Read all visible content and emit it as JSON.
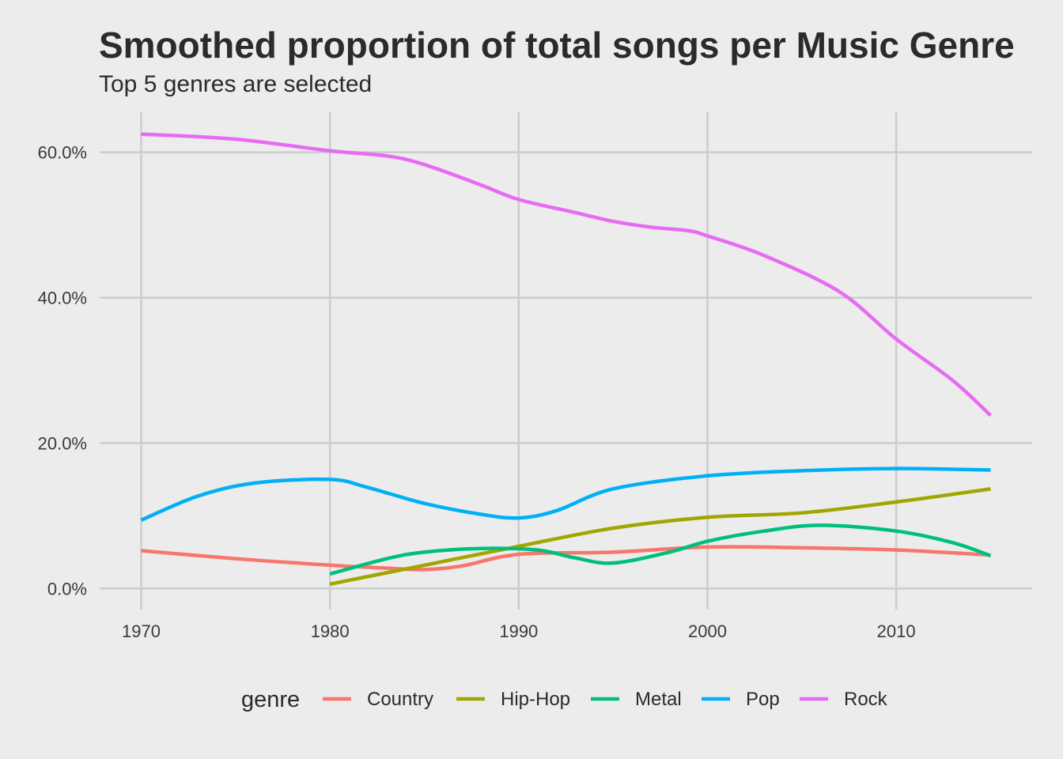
{
  "chart_data": {
    "type": "line",
    "title": "Smoothed proportion of total songs per Music Genre",
    "subtitle": "Top 5 genres are selected",
    "xlabel": "",
    "ylabel": "",
    "xlim": [
      1967.8,
      2017.2
    ],
    "ylim": [
      -0.029,
      0.655
    ],
    "x_ticks": [
      1970,
      1980,
      1990,
      2000,
      2010
    ],
    "x_tick_labels": [
      "1970",
      "1980",
      "1990",
      "2000",
      "2010"
    ],
    "y_ticks": [
      0.0,
      0.2,
      0.4,
      0.6
    ],
    "y_tick_labels": [
      "0.0%",
      "20.0%",
      "40.0%",
      "60.0%"
    ],
    "grid": true,
    "legend": {
      "title": "genre",
      "position": "bottom"
    },
    "series": [
      {
        "name": "Country",
        "color": "#F8766D",
        "points": [
          [
            1970,
            0.052
          ],
          [
            1975,
            0.041
          ],
          [
            1980,
            0.032
          ],
          [
            1983,
            0.028
          ],
          [
            1985,
            0.026
          ],
          [
            1987,
            0.031
          ],
          [
            1990,
            0.047
          ],
          [
            1995,
            0.05
          ],
          [
            2000,
            0.057
          ],
          [
            2005,
            0.056
          ],
          [
            2010,
            0.053
          ],
          [
            2015,
            0.046
          ]
        ]
      },
      {
        "name": "Hip-Hop",
        "color": "#A3A500",
        "points": [
          [
            1980,
            0.006
          ],
          [
            1985,
            0.032
          ],
          [
            1990,
            0.058
          ],
          [
            1995,
            0.083
          ],
          [
            2000,
            0.098
          ],
          [
            2005,
            0.104
          ],
          [
            2010,
            0.119
          ],
          [
            2015,
            0.137
          ]
        ]
      },
      {
        "name": "Metal",
        "color": "#00BF7D",
        "points": [
          [
            1980,
            0.02
          ],
          [
            1983,
            0.041
          ],
          [
            1985,
            0.05
          ],
          [
            1988,
            0.055
          ],
          [
            1991,
            0.053
          ],
          [
            1993,
            0.042
          ],
          [
            1995,
            0.035
          ],
          [
            1998,
            0.05
          ],
          [
            2000,
            0.065
          ],
          [
            2003,
            0.079
          ],
          [
            2006,
            0.087
          ],
          [
            2010,
            0.079
          ],
          [
            2013,
            0.063
          ],
          [
            2015,
            0.045
          ]
        ]
      },
      {
        "name": "Pop",
        "color": "#00B0F6",
        "points": [
          [
            1970,
            0.094
          ],
          [
            1973,
            0.127
          ],
          [
            1976,
            0.145
          ],
          [
            1980,
            0.15
          ],
          [
            1982,
            0.139
          ],
          [
            1985,
            0.117
          ],
          [
            1988,
            0.102
          ],
          [
            1990,
            0.097
          ],
          [
            1992,
            0.107
          ],
          [
            1995,
            0.137
          ],
          [
            2000,
            0.155
          ],
          [
            2005,
            0.162
          ],
          [
            2010,
            0.165
          ],
          [
            2015,
            0.163
          ]
        ]
      },
      {
        "name": "Rock",
        "color": "#E76BF3",
        "points": [
          [
            1970,
            0.625
          ],
          [
            1975,
            0.618
          ],
          [
            1980,
            0.602
          ],
          [
            1983,
            0.595
          ],
          [
            1985,
            0.583
          ],
          [
            1988,
            0.555
          ],
          [
            1990,
            0.535
          ],
          [
            1993,
            0.517
          ],
          [
            1995,
            0.505
          ],
          [
            1997,
            0.497
          ],
          [
            1999,
            0.492
          ],
          [
            2000,
            0.485
          ],
          [
            2003,
            0.458
          ],
          [
            2007,
            0.408
          ],
          [
            2010,
            0.343
          ],
          [
            2013,
            0.286
          ],
          [
            2015,
            0.238
          ]
        ]
      }
    ]
  }
}
